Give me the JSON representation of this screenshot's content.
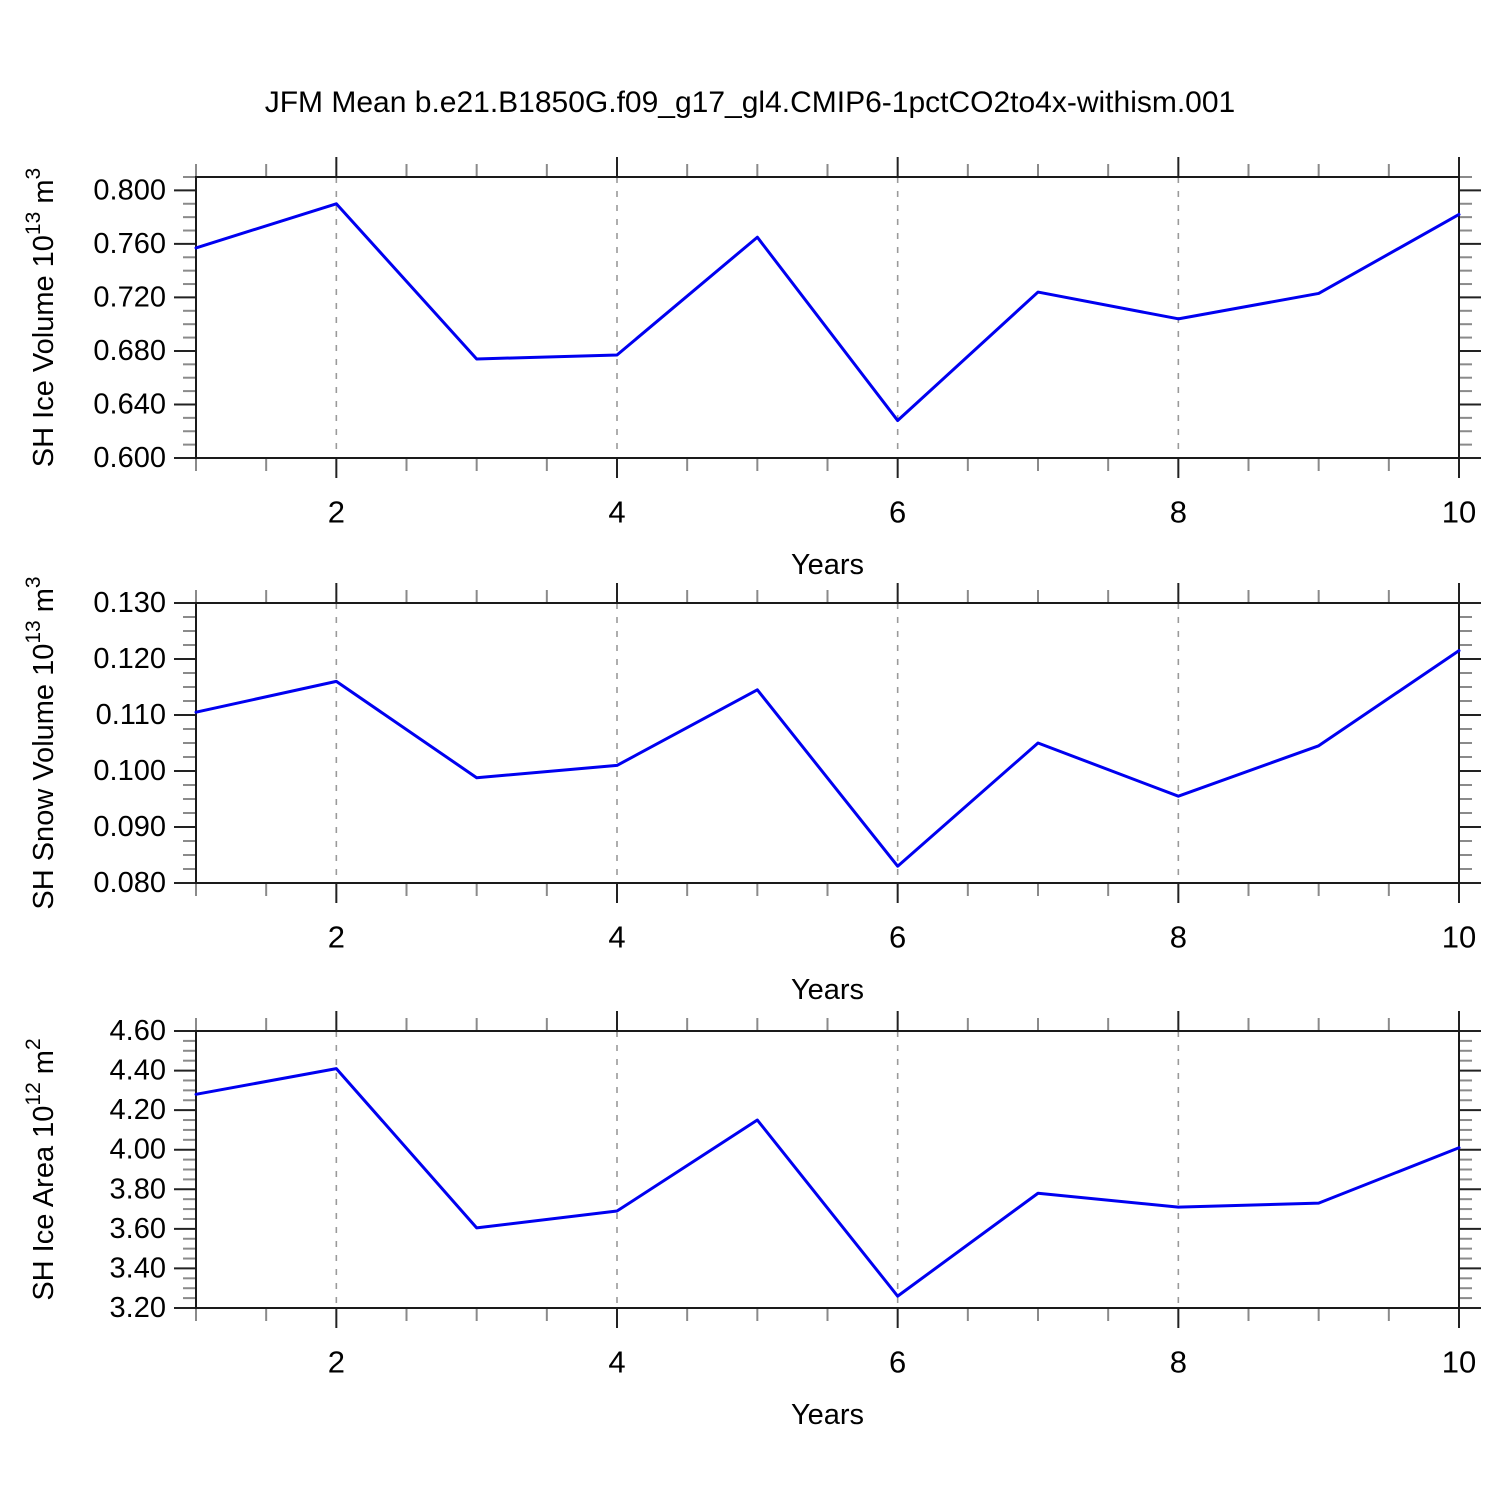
{
  "title": "JFM Mean b.e21.B1850G.f09_g17_gl4.CMIP6-1pctCO2to4x-withism.001",
  "colors": {
    "line": "#0000f0",
    "axis": "#1a1a1a",
    "tick_major": "#222222",
    "tick_minor": "#8a8a8a",
    "grid": "#9a9a9a",
    "text": "#000000"
  },
  "chart_data": [
    {
      "type": "line",
      "ylabel_text": "SH Ice Volume 10^13 m^3",
      "ylabel_parts": [
        {
          "t": "SH Ice Volume 10",
          "sup": false
        },
        {
          "t": "13",
          "sup": true
        },
        {
          "t": " m",
          "sup": false
        },
        {
          "t": "3",
          "sup": true
        }
      ],
      "xlabel": "Years",
      "xlim": [
        1,
        10
      ],
      "ylim": [
        0.6,
        0.81
      ],
      "yticks": [
        0.6,
        0.64,
        0.68,
        0.72,
        0.76,
        0.8
      ],
      "ytick_labels": [
        "0.600",
        "0.640",
        "0.680",
        "0.720",
        "0.760",
        "0.800"
      ],
      "y_minor_step": 0.01,
      "x_major_ticks": [
        2,
        4,
        6,
        8,
        10
      ],
      "x_major_labels": [
        "2",
        "4",
        "6",
        "8",
        "10"
      ],
      "x_minor_step": 0.5,
      "x_gridlines": [
        2,
        4,
        6,
        8
      ],
      "x": [
        1,
        2,
        3,
        4,
        5,
        6,
        7,
        8,
        9,
        10
      ],
      "values": [
        0.757,
        0.79,
        0.674,
        0.677,
        0.765,
        0.628,
        0.724,
        0.704,
        0.723,
        0.782
      ]
    },
    {
      "type": "line",
      "ylabel_text": "SH Snow Volume 10^13 m^3",
      "ylabel_parts": [
        {
          "t": "SH Snow Volume 10",
          "sup": false
        },
        {
          "t": "13",
          "sup": true
        },
        {
          "t": " m",
          "sup": false
        },
        {
          "t": "3",
          "sup": true
        }
      ],
      "xlabel": "Years",
      "xlim": [
        1,
        10
      ],
      "ylim": [
        0.08,
        0.13
      ],
      "yticks": [
        0.08,
        0.09,
        0.1,
        0.11,
        0.12,
        0.13
      ],
      "ytick_labels": [
        "0.080",
        "0.090",
        "0.100",
        "0.110",
        "0.120",
        "0.130"
      ],
      "y_minor_step": 0.0025,
      "x_major_ticks": [
        2,
        4,
        6,
        8,
        10
      ],
      "x_major_labels": [
        "2",
        "4",
        "6",
        "8",
        "10"
      ],
      "x_minor_step": 0.5,
      "x_gridlines": [
        2,
        4,
        6,
        8
      ],
      "x": [
        1,
        2,
        3,
        4,
        5,
        6,
        7,
        8,
        9,
        10
      ],
      "values": [
        0.1105,
        0.116,
        0.0988,
        0.101,
        0.1145,
        0.083,
        0.105,
        0.0955,
        0.1045,
        0.1215
      ]
    },
    {
      "type": "line",
      "ylabel_text": "SH Ice Area 10^12 m^2",
      "ylabel_parts": [
        {
          "t": "SH Ice Area 10",
          "sup": false
        },
        {
          "t": "12",
          "sup": true
        },
        {
          "t": " m",
          "sup": false
        },
        {
          "t": "2",
          "sup": true
        }
      ],
      "xlabel": "Years",
      "xlim": [
        1,
        10
      ],
      "ylim": [
        3.2,
        4.6
      ],
      "yticks": [
        3.2,
        3.4,
        3.6,
        3.8,
        4.0,
        4.2,
        4.4,
        4.6
      ],
      "ytick_labels": [
        "3.20",
        "3.40",
        "3.60",
        "3.80",
        "4.00",
        "4.20",
        "4.40",
        "4.60"
      ],
      "y_minor_step": 0.05,
      "x_major_ticks": [
        2,
        4,
        6,
        8,
        10
      ],
      "x_major_labels": [
        "2",
        "4",
        "6",
        "8",
        "10"
      ],
      "x_minor_step": 0.5,
      "x_gridlines": [
        2,
        4,
        6,
        8
      ],
      "x": [
        1,
        2,
        3,
        4,
        5,
        6,
        7,
        8,
        9,
        10
      ],
      "values": [
        4.28,
        4.41,
        3.605,
        3.69,
        4.15,
        3.26,
        3.78,
        3.71,
        3.73,
        4.01
      ]
    }
  ]
}
